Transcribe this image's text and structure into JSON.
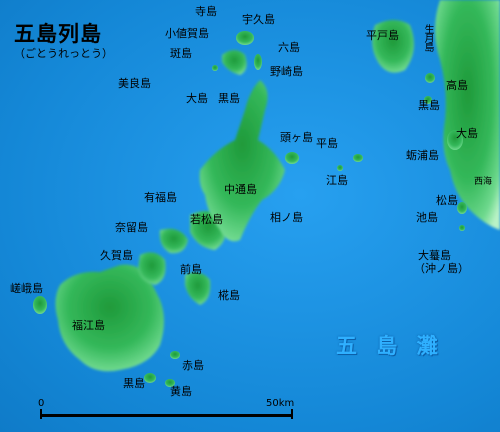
{
  "title": "五島列島",
  "reading": "（ごとうれっとう）",
  "sea_label": "五 島 灘",
  "scale": {
    "start": "0",
    "end": "50km"
  },
  "labels": {
    "terashima": "寺島",
    "ukujima": "宇久島",
    "ojikajima": "小値賀島",
    "rokushima": "六島",
    "madarashima": "斑島",
    "nozakijima": "野崎島",
    "biraijima": "美良島",
    "oshima": "大島",
    "kuroshima_n": "黒島",
    "kashiragashima": "頭ヶ島",
    "hirashima": "平島",
    "ejima": "江島",
    "nakadorijima": "中通島",
    "arifukujima": "有福島",
    "wakamatsujima": "若松島",
    "ainoshima": "相ノ島",
    "naruishima": "奈留島",
    "kugajima": "久賀島",
    "maejima": "前島",
    "kabashima": "椛島",
    "sagashima": "嵯峨島",
    "fukuejima": "福江島",
    "akashima": "赤島",
    "kuroshima_s": "黒島",
    "kishima": "黄島",
    "hiradojima": "平戸島",
    "ikitsukijima": "生月島",
    "takashima": "高島",
    "kuroshima_e": "黒島",
    "oshima_e": "大島",
    "madaraura": "蛎浦島",
    "saikai": "西海",
    "matsushima": "松島",
    "ikeshima": "池島",
    "ogashima": "大蟇島",
    "okinoshima": "（沖ノ島）"
  }
}
